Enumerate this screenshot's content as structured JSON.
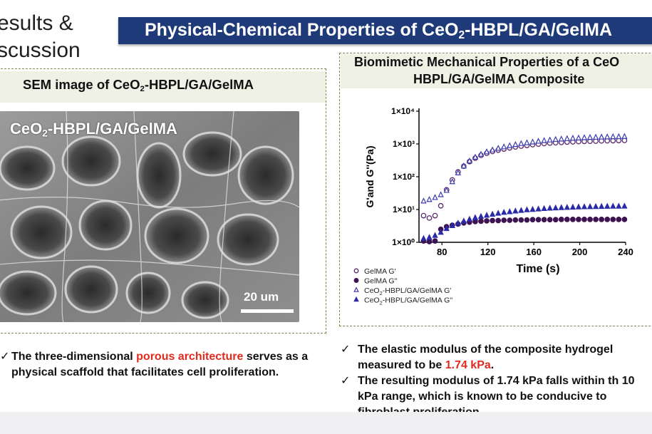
{
  "section_title": {
    "line1": "esults &",
    "line2": "scussion"
  },
  "title_bar": {
    "pre": "Physical-Chemical Properties of CeO",
    "sub": "2",
    "post": "-HBPL/GA/GelMA"
  },
  "left_panel": {
    "header": {
      "pre": "SEM image of CeO",
      "sub": "2",
      "post": "-HBPL/GA/GelMA"
    },
    "image_label": {
      "pre": "CeO",
      "sub": "2",
      "post": "-HBPL/GA/GelMA"
    },
    "scale_bar_label": "20 um",
    "bullet": {
      "check": "✓",
      "text_pre": "The three-dimensional ",
      "text_highlight": "porous architecture",
      "text_post": " serves as a physical scaffold that facilitates cell proliferation."
    }
  },
  "right_panel": {
    "header_line1": "Biomimetic Mechanical Properties of a CeO",
    "header_line2": "HBPL/GA/GelMA Composite",
    "bullets": [
      {
        "check": "✓",
        "text_pre": "The  elastic modulus of the composite hydrogel",
        "text_line2_pre": "measured to be ",
        "highlight": "1.74 kPa",
        "text_post": "."
      },
      {
        "check": "✓",
        "text": "The resulting modulus of 1.74 kPa falls within th 10 kPa range, which is known to be conducive to fibroblast proliferation"
      }
    ]
  },
  "chart_data": {
    "type": "scatter",
    "xlabel": "Time (s)",
    "ylabel": "G'and G''(Pa)",
    "xlim": [
      60,
      240
    ],
    "ylim": [
      1,
      10000
    ],
    "yscale": "log",
    "xticks": [
      "80",
      "120",
      "160",
      "200",
      "240"
    ],
    "yticks": [
      "1×10⁰",
      "1×10¹",
      "1×10²",
      "1×10³",
      "1×10⁴"
    ],
    "legend_position": "below-left",
    "series": [
      {
        "name": "GelMA G'",
        "marker": "open-circle",
        "color": "#5b2a6e",
        "x": [
          64,
          69,
          74,
          79,
          84,
          89,
          94,
          99,
          104,
          109,
          114,
          119,
          124,
          129,
          134,
          139,
          144,
          149,
          154,
          159,
          164,
          169,
          174,
          179,
          184,
          189,
          194,
          199,
          204,
          209,
          214,
          219,
          224,
          229,
          234,
          239
        ],
        "y": [
          6.5,
          5.5,
          6.5,
          13,
          40,
          80,
          140,
          210,
          290,
          370,
          450,
          520,
          590,
          650,
          700,
          760,
          810,
          860,
          900,
          950,
          990,
          1030,
          1060,
          1090,
          1110,
          1140,
          1160,
          1180,
          1200,
          1210,
          1220,
          1240,
          1250,
          1260,
          1270,
          1280
        ]
      },
      {
        "name": "GelMA G''",
        "marker": "filled-circle",
        "color": "#3d1352",
        "x": [
          64,
          69,
          74,
          79,
          84,
          89,
          94,
          99,
          104,
          109,
          114,
          119,
          124,
          129,
          134,
          139,
          144,
          149,
          154,
          159,
          164,
          169,
          174,
          179,
          184,
          189,
          194,
          199,
          204,
          209,
          214,
          219,
          224,
          229,
          234,
          239
        ],
        "y": [
          1.1,
          1.05,
          1.1,
          2.5,
          3.0,
          3.3,
          3.6,
          3.9,
          4.1,
          4.3,
          4.4,
          4.5,
          4.6,
          4.6,
          4.7,
          4.7,
          4.8,
          4.8,
          4.8,
          4.9,
          4.9,
          4.9,
          4.9,
          4.9,
          5.0,
          5.0,
          5.0,
          5.0,
          5.0,
          5.0,
          5.0,
          5.0,
          5.0,
          5.0,
          5.0,
          5.0
        ]
      },
      {
        "name_pre": "CeO",
        "name_sub": "2",
        "name_post": "-HBPL/GA/GelMA G'",
        "marker": "open-triangle",
        "color": "#3b3bb0",
        "x": [
          64,
          69,
          74,
          79,
          84,
          89,
          94,
          99,
          104,
          109,
          114,
          119,
          124,
          129,
          134,
          139,
          144,
          149,
          154,
          159,
          164,
          169,
          174,
          179,
          184,
          189,
          194,
          199,
          204,
          209,
          214,
          219,
          224,
          229,
          234,
          239
        ],
        "y": [
          18,
          20,
          23,
          28,
          38,
          70,
          130,
          210,
          300,
          390,
          480,
          570,
          650,
          730,
          810,
          880,
          950,
          1020,
          1080,
          1140,
          1200,
          1260,
          1310,
          1360,
          1400,
          1440,
          1480,
          1510,
          1540,
          1570,
          1590,
          1610,
          1630,
          1650,
          1660,
          1680
        ]
      },
      {
        "name_pre": "CeO",
        "name_sub": "2",
        "name_post": "-HBPL/GA/GelMA G''",
        "marker": "filled-triangle",
        "color": "#2b2ba8",
        "x": [
          64,
          69,
          74,
          79,
          84,
          89,
          94,
          99,
          104,
          109,
          114,
          119,
          124,
          129,
          134,
          139,
          144,
          149,
          154,
          159,
          164,
          169,
          174,
          179,
          184,
          189,
          194,
          199,
          204,
          209,
          214,
          219,
          224,
          229,
          234,
          239
        ],
        "y": [
          1.3,
          1.4,
          1.6,
          2.0,
          2.6,
          3.2,
          3.8,
          4.4,
          5.0,
          5.6,
          6.1,
          6.6,
          7.1,
          7.6,
          8.1,
          8.5,
          8.9,
          9.3,
          9.7,
          10.0,
          10.3,
          10.6,
          10.9,
          11.1,
          11.3,
          11.5,
          11.7,
          11.9,
          12.0,
          12.1,
          12.2,
          12.3,
          12.4,
          12.5,
          12.5,
          12.6
        ]
      }
    ]
  },
  "colors": {
    "title_bar": "#1f3a78",
    "highlight": "#e02b1e",
    "box_border": "#7a8a4d",
    "header_fill": "#eef1e4"
  }
}
